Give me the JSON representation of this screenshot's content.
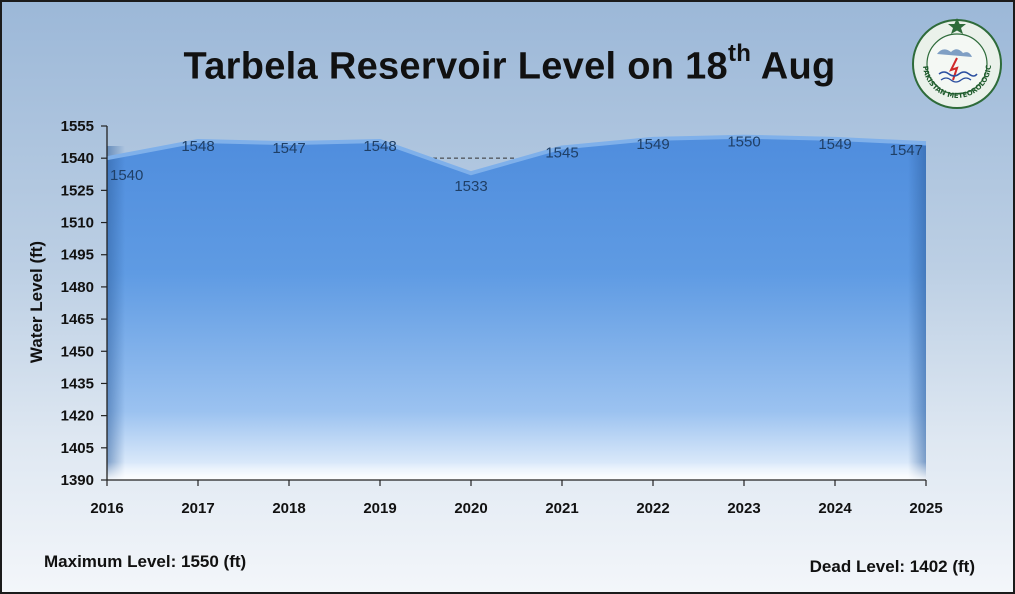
{
  "title_main": "Tarbela Reservoir Level on 18",
  "title_sup": "th",
  "title_tail": " Aug",
  "logo": {
    "icon": "pakistan-meteorological-department-seal",
    "text": "PAKISTAN METEOROLOGICAL DEPARTMENT"
  },
  "footer": {
    "max_level": "Maximum Level: 1550 (ft)",
    "dead_level": "Dead Level: 1402 (ft)"
  },
  "chart_data": {
    "type": "area",
    "title": "Tarbela Reservoir Level on 18th Aug",
    "ylabel": "Water Level (ft)",
    "xlabel": "",
    "categories": [
      "2016",
      "2017",
      "2018",
      "2019",
      "2020",
      "2021",
      "2022",
      "2023",
      "2024",
      "2025"
    ],
    "series": [
      {
        "values": [
          1540,
          1548,
          1547,
          1548,
          1533,
          1545,
          1549,
          1550,
          1549,
          1547
        ]
      }
    ],
    "ylim": [
      1390,
      1555
    ],
    "yticks": [
      1390,
      1405,
      1420,
      1435,
      1450,
      1465,
      1480,
      1495,
      1510,
      1525,
      1540,
      1555
    ],
    "grid": false,
    "fill_color": "#5b97e0",
    "line_color": "#4a86d4"
  }
}
